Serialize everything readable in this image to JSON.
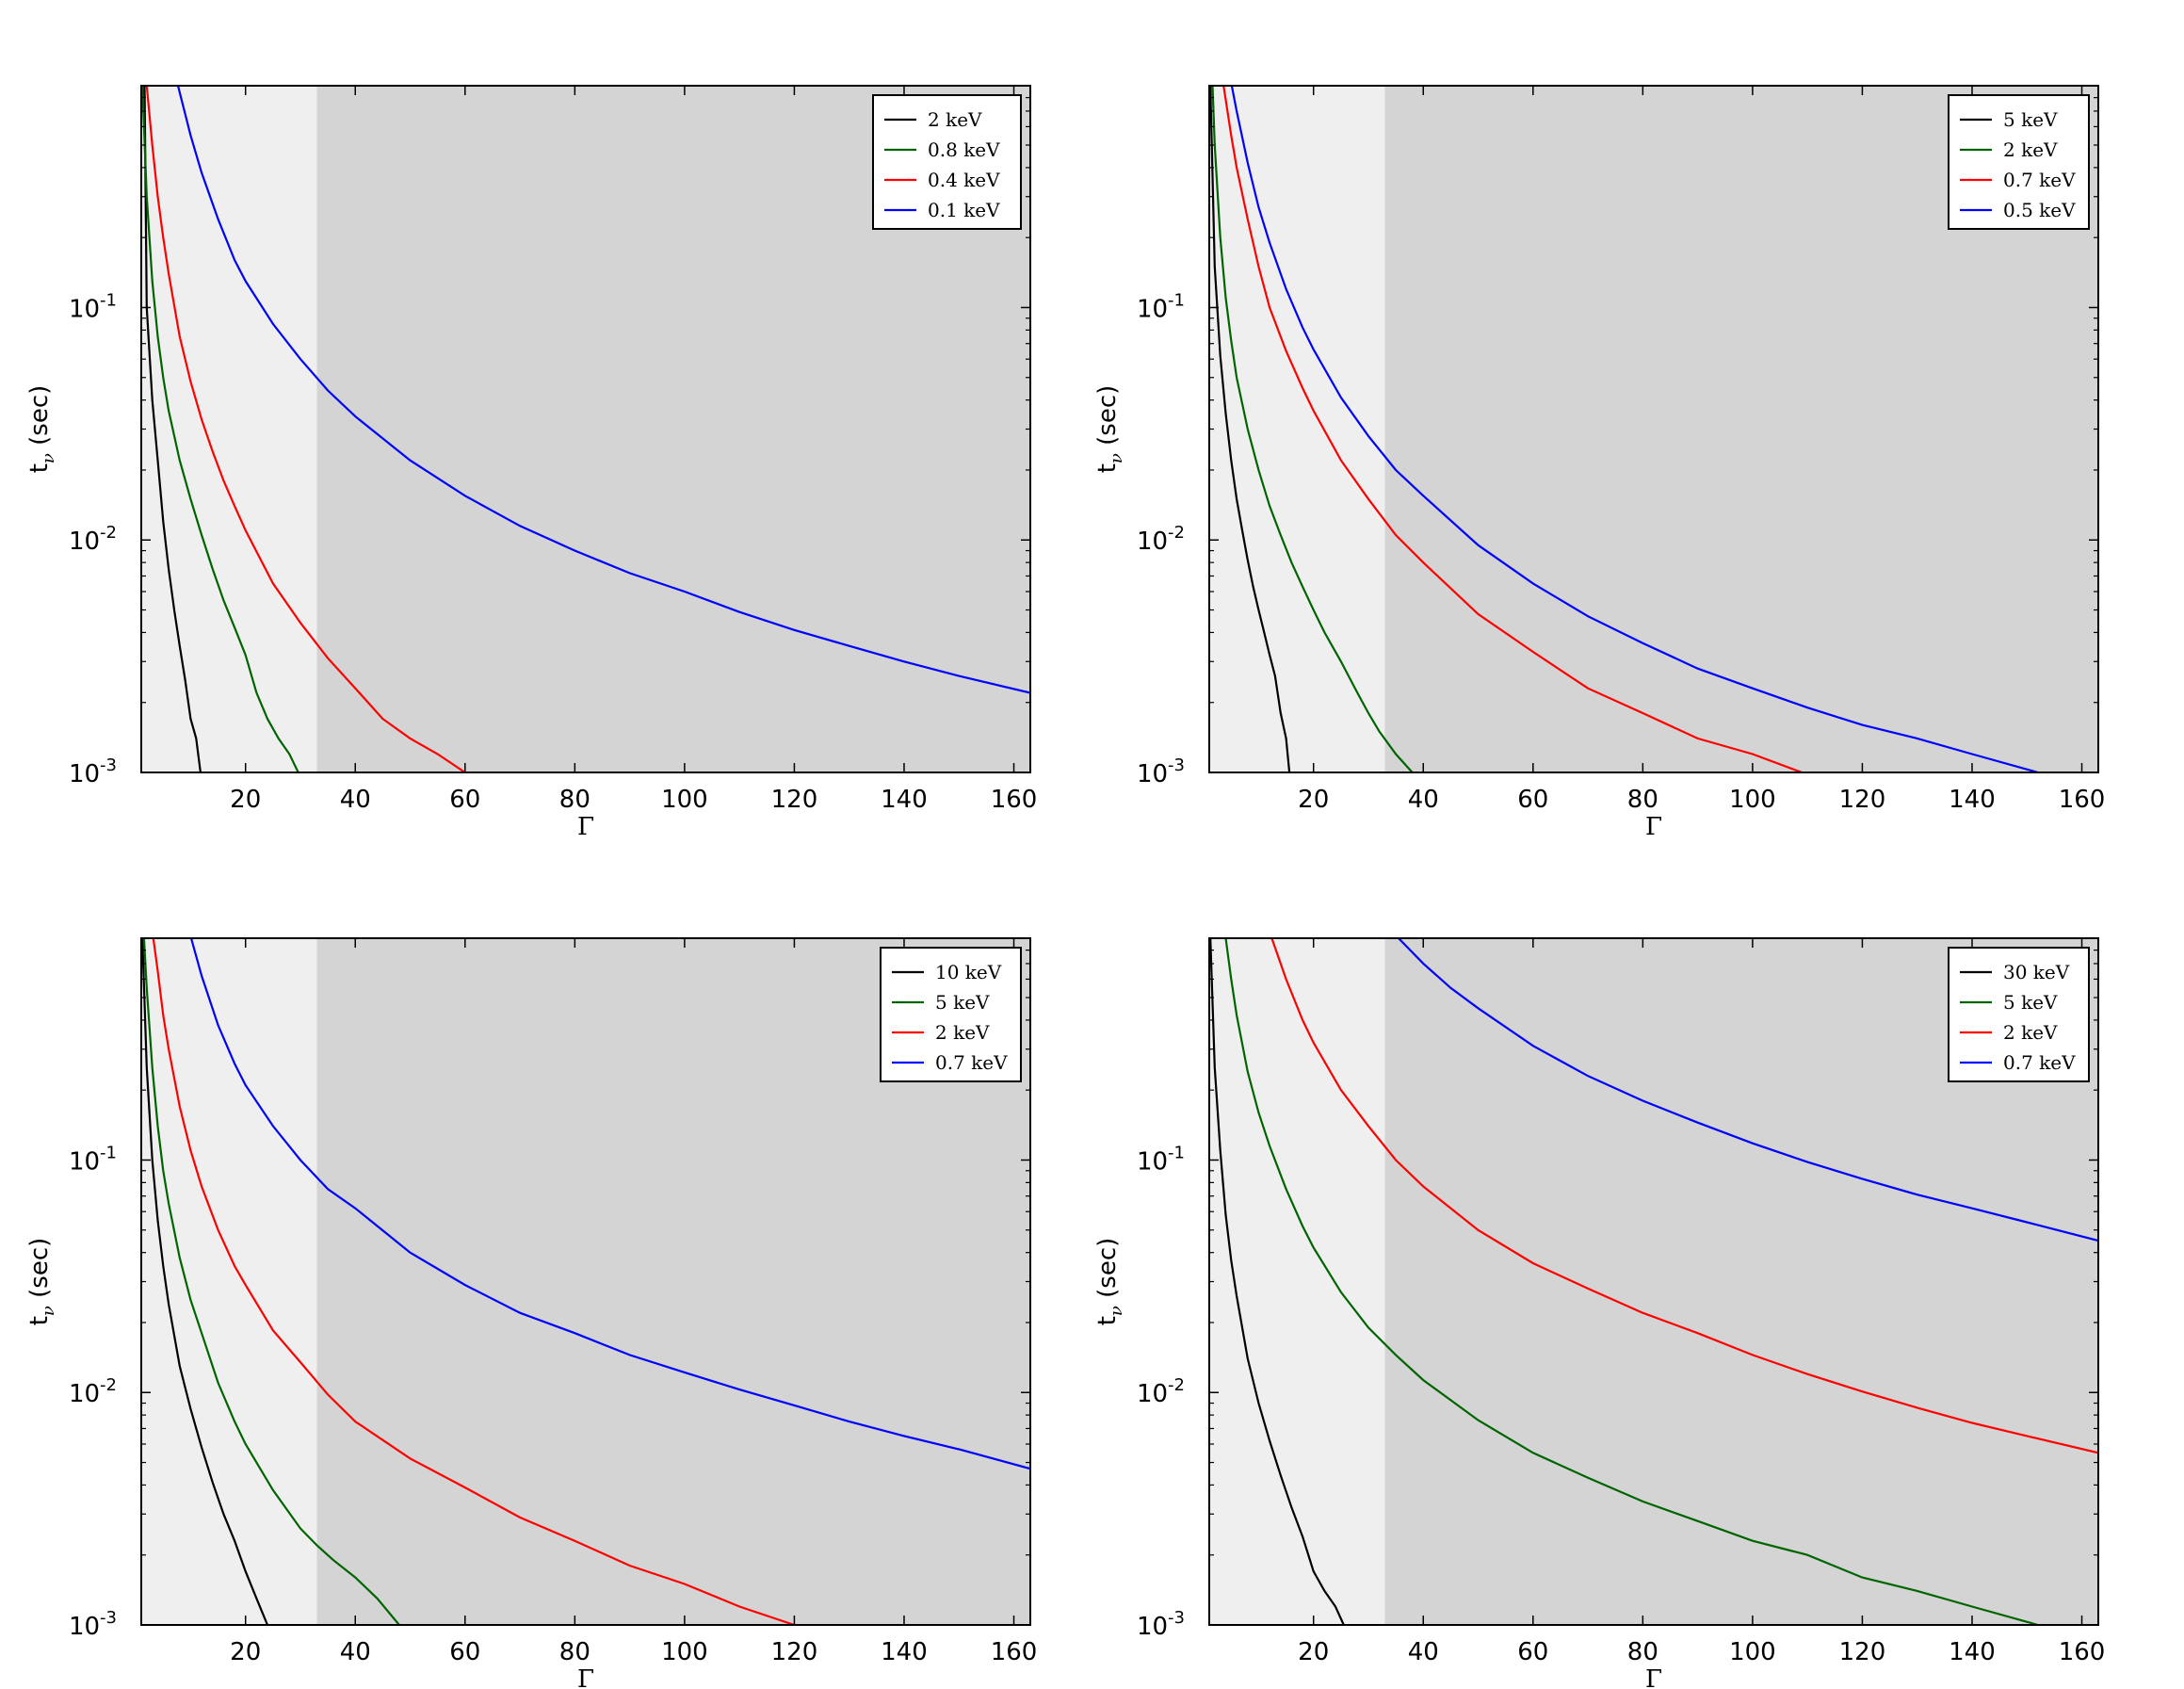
{
  "chart_data": [
    {
      "type": "line",
      "xlabel": "Γ",
      "ylabel_main": "t",
      "ylabel_sub": "ν",
      "ylabel_rest": " (sec)",
      "xlim": [
        1,
        163
      ],
      "ylim": [
        0.001,
        0.9
      ],
      "yscale": "log",
      "xticks": [
        20,
        40,
        60,
        80,
        100,
        120,
        140,
        160
      ],
      "yticks": [
        {
          "base": "10",
          "exp": "-3"
        },
        {
          "base": "10",
          "exp": "-2"
        },
        {
          "base": "10",
          "exp": "-1"
        }
      ],
      "shaded_regions": [
        {
          "x0": 1,
          "x1": 33,
          "color": "#efefef"
        },
        {
          "x0": 33,
          "x1": 163,
          "color": "#d4d4d4"
        }
      ],
      "legend_position": "top-right",
      "series": [
        {
          "name": "2 keV",
          "color": "#000000",
          "x": [
            1.6,
            2,
            3,
            4,
            5,
            6,
            7,
            8,
            9,
            10,
            11,
            11.8
          ],
          "y": [
            0.9,
            0.1,
            0.04,
            0.022,
            0.012,
            0.0075,
            0.005,
            0.0035,
            0.0025,
            0.0017,
            0.0014,
            0.001
          ]
        },
        {
          "name": "0.8 keV",
          "color": "#006400",
          "x": [
            1.2,
            2,
            3,
            4,
            5,
            6,
            8,
            10,
            12,
            14,
            16,
            18,
            20,
            22,
            24,
            26,
            28,
            29.6
          ],
          "y": [
            0.9,
            0.3,
            0.13,
            0.075,
            0.05,
            0.036,
            0.022,
            0.015,
            0.0105,
            0.0075,
            0.0055,
            0.0042,
            0.0032,
            0.0022,
            0.0017,
            0.0014,
            0.0012,
            0.001
          ]
        },
        {
          "name": "0.4 keV",
          "color": "#ff0000",
          "x": [
            2,
            3,
            4,
            5,
            6,
            8,
            10,
            12,
            14,
            16,
            18,
            20,
            25,
            30,
            35,
            40,
            45,
            50,
            55,
            60
          ],
          "y": [
            0.9,
            0.5,
            0.3,
            0.2,
            0.14,
            0.075,
            0.048,
            0.033,
            0.024,
            0.018,
            0.014,
            0.011,
            0.0065,
            0.0044,
            0.0031,
            0.0023,
            0.0017,
            0.0014,
            0.0012,
            0.001
          ]
        },
        {
          "name": "0.1 keV",
          "color": "#0000ff",
          "x": [
            7.7,
            10,
            12,
            15,
            18,
            20,
            25,
            30,
            35,
            40,
            50,
            60,
            70,
            80,
            90,
            100,
            110,
            120,
            130,
            140,
            150,
            163
          ],
          "y": [
            0.9,
            0.55,
            0.38,
            0.24,
            0.16,
            0.13,
            0.085,
            0.06,
            0.044,
            0.034,
            0.022,
            0.0155,
            0.0115,
            0.009,
            0.0072,
            0.006,
            0.0049,
            0.0041,
            0.0035,
            0.003,
            0.0026,
            0.0022
          ]
        }
      ]
    },
    {
      "type": "line",
      "xlabel": "Γ",
      "ylabel_main": "t",
      "ylabel_sub": "ν",
      "ylabel_rest": " (sec)",
      "xlim": [
        1,
        163
      ],
      "ylim": [
        0.001,
        0.9
      ],
      "yscale": "log",
      "xticks": [
        20,
        40,
        60,
        80,
        100,
        120,
        140,
        160
      ],
      "yticks": [
        {
          "base": "10",
          "exp": "-3"
        },
        {
          "base": "10",
          "exp": "-2"
        },
        {
          "base": "10",
          "exp": "-1"
        }
      ],
      "shaded_regions": [
        {
          "x0": 1,
          "x1": 33,
          "color": "#efefef"
        },
        {
          "x0": 33,
          "x1": 163,
          "color": "#d4d4d4"
        }
      ],
      "legend_position": "top-right",
      "series": [
        {
          "name": "5 keV",
          "color": "#000000",
          "x": [
            1.2,
            2,
            3,
            4,
            5,
            6,
            7,
            8,
            9,
            10,
            11,
            12,
            13,
            14,
            15,
            15.6
          ],
          "y": [
            0.9,
            0.15,
            0.062,
            0.035,
            0.022,
            0.015,
            0.011,
            0.0082,
            0.0063,
            0.005,
            0.004,
            0.0032,
            0.0026,
            0.0018,
            0.0014,
            0.001
          ]
        },
        {
          "name": "2 keV",
          "color": "#006400",
          "x": [
            1.6,
            2,
            3,
            4,
            5,
            6,
            8,
            10,
            12,
            14,
            16,
            18,
            20,
            22,
            25,
            28,
            30,
            32,
            35,
            38
          ],
          "y": [
            0.9,
            0.5,
            0.2,
            0.11,
            0.072,
            0.05,
            0.03,
            0.02,
            0.014,
            0.0105,
            0.008,
            0.0063,
            0.005,
            0.004,
            0.003,
            0.0022,
            0.0018,
            0.0015,
            0.0012,
            0.001
          ]
        },
        {
          "name": "0.7 keV",
          "color": "#ff0000",
          "x": [
            3.6,
            5,
            6,
            8,
            10,
            12,
            15,
            18,
            20,
            25,
            30,
            35,
            40,
            50,
            60,
            70,
            80,
            90,
            100,
            109
          ],
          "y": [
            0.9,
            0.55,
            0.4,
            0.24,
            0.15,
            0.1,
            0.065,
            0.045,
            0.036,
            0.022,
            0.015,
            0.0105,
            0.008,
            0.0048,
            0.0033,
            0.0023,
            0.0018,
            0.0014,
            0.0012,
            0.001
          ]
        },
        {
          "name": "0.5 keV",
          "color": "#0000ff",
          "x": [
            5.1,
            6,
            8,
            10,
            12,
            15,
            18,
            20,
            25,
            30,
            35,
            40,
            50,
            60,
            70,
            80,
            90,
            100,
            110,
            120,
            130,
            140,
            152
          ],
          "y": [
            0.9,
            0.7,
            0.42,
            0.27,
            0.19,
            0.12,
            0.082,
            0.066,
            0.041,
            0.028,
            0.02,
            0.0155,
            0.0095,
            0.0065,
            0.0047,
            0.0036,
            0.0028,
            0.0023,
            0.0019,
            0.0016,
            0.0014,
            0.0012,
            0.001
          ]
        }
      ]
    },
    {
      "type": "line",
      "xlabel": "Γ",
      "ylabel_main": "t",
      "ylabel_sub": "ν",
      "ylabel_rest": " (sec)",
      "xlim": [
        1,
        163
      ],
      "ylim": [
        0.001,
        0.9
      ],
      "yscale": "log",
      "xticks": [
        20,
        40,
        60,
        80,
        100,
        120,
        140,
        160
      ],
      "yticks": [
        {
          "base": "10",
          "exp": "-3"
        },
        {
          "base": "10",
          "exp": "-2"
        },
        {
          "base": "10",
          "exp": "-1"
        }
      ],
      "shaded_regions": [
        {
          "x0": 1,
          "x1": 33,
          "color": "#efefef"
        },
        {
          "x0": 33,
          "x1": 163,
          "color": "#d4d4d4"
        }
      ],
      "legend_position": "top-right",
      "series": [
        {
          "name": "10 keV",
          "color": "#000000",
          "x": [
            1.2,
            2,
            3,
            4,
            5,
            6,
            8,
            10,
            12,
            14,
            16,
            18,
            20,
            22,
            24
          ],
          "y": [
            0.9,
            0.25,
            0.1,
            0.055,
            0.035,
            0.024,
            0.013,
            0.0085,
            0.0058,
            0.0041,
            0.003,
            0.0023,
            0.0017,
            0.0013,
            0.001
          ]
        },
        {
          "name": "5 keV",
          "color": "#006400",
          "x": [
            1.5,
            2,
            3,
            4,
            5,
            6,
            8,
            10,
            12,
            15,
            18,
            20,
            25,
            30,
            33,
            36,
            40,
            44,
            48
          ],
          "y": [
            0.9,
            0.55,
            0.25,
            0.14,
            0.09,
            0.065,
            0.038,
            0.025,
            0.018,
            0.011,
            0.0075,
            0.006,
            0.0038,
            0.0026,
            0.0022,
            0.0019,
            0.0016,
            0.0013,
            0.001
          ]
        },
        {
          "name": "2 keV",
          "color": "#ff0000",
          "x": [
            3.2,
            4,
            5,
            6,
            8,
            10,
            12,
            15,
            18,
            20,
            25,
            30,
            35,
            40,
            50,
            60,
            70,
            80,
            90,
            100,
            110,
            120
          ],
          "y": [
            0.9,
            0.65,
            0.42,
            0.3,
            0.17,
            0.11,
            0.077,
            0.05,
            0.035,
            0.029,
            0.0185,
            0.0135,
            0.0098,
            0.0075,
            0.0052,
            0.0039,
            0.0029,
            0.0023,
            0.0018,
            0.0015,
            0.0012,
            0.001
          ]
        },
        {
          "name": "0.7 keV",
          "color": "#0000ff",
          "x": [
            10.1,
            12,
            15,
            18,
            20,
            25,
            30,
            35,
            40,
            50,
            60,
            70,
            80,
            90,
            100,
            110,
            120,
            130,
            140,
            150,
            163
          ],
          "y": [
            0.9,
            0.62,
            0.38,
            0.26,
            0.21,
            0.14,
            0.1,
            0.075,
            0.062,
            0.04,
            0.029,
            0.022,
            0.018,
            0.0145,
            0.0122,
            0.0103,
            0.0088,
            0.0075,
            0.0065,
            0.0057,
            0.0047
          ]
        }
      ]
    },
    {
      "type": "line",
      "xlabel": "Γ",
      "ylabel_main": "t",
      "ylabel_sub": "ν",
      "ylabel_rest": " (sec)",
      "xlim": [
        1,
        163
      ],
      "ylim": [
        0.001,
        0.9
      ],
      "yscale": "log",
      "xticks": [
        20,
        40,
        60,
        80,
        100,
        120,
        140,
        160
      ],
      "yticks": [
        {
          "base": "10",
          "exp": "-3"
        },
        {
          "base": "10",
          "exp": "-2"
        },
        {
          "base": "10",
          "exp": "-1"
        }
      ],
      "shaded_regions": [
        {
          "x0": 1,
          "x1": 33,
          "color": "#efefef"
        },
        {
          "x0": 33,
          "x1": 163,
          "color": "#d4d4d4"
        }
      ],
      "legend_position": "top-right",
      "series": [
        {
          "name": "30 keV",
          "color": "#000000",
          "x": [
            1.2,
            2,
            3,
            4,
            5,
            6,
            8,
            10,
            12,
            14,
            16,
            18,
            20,
            22,
            24,
            25.5
          ],
          "y": [
            0.9,
            0.25,
            0.11,
            0.058,
            0.037,
            0.026,
            0.014,
            0.009,
            0.0062,
            0.0044,
            0.0032,
            0.0024,
            0.0017,
            0.0014,
            0.0012,
            0.001
          ]
        },
        {
          "name": "5 keV",
          "color": "#006400",
          "x": [
            4,
            5,
            6,
            8,
            10,
            12,
            15,
            18,
            20,
            25,
            30,
            35,
            40,
            50,
            60,
            70,
            80,
            90,
            100,
            110,
            120,
            130,
            140,
            152
          ],
          "y": [
            0.9,
            0.6,
            0.42,
            0.24,
            0.16,
            0.115,
            0.075,
            0.052,
            0.042,
            0.027,
            0.019,
            0.0145,
            0.0113,
            0.0076,
            0.0055,
            0.0043,
            0.0034,
            0.0028,
            0.0023,
            0.002,
            0.0016,
            0.0014,
            0.0012,
            0.001
          ]
        },
        {
          "name": "2 keV",
          "color": "#ff0000",
          "x": [
            12.4,
            15,
            18,
            20,
            25,
            30,
            35,
            40,
            50,
            60,
            70,
            80,
            90,
            100,
            110,
            120,
            130,
            140,
            150,
            163
          ],
          "y": [
            0.9,
            0.6,
            0.4,
            0.32,
            0.2,
            0.14,
            0.1,
            0.077,
            0.05,
            0.036,
            0.028,
            0.022,
            0.018,
            0.0145,
            0.012,
            0.0101,
            0.0086,
            0.0074,
            0.0065,
            0.0055
          ]
        },
        {
          "name": "0.7 keV",
          "color": "#0000ff",
          "x": [
            35.5,
            40,
            45,
            50,
            60,
            70,
            80,
            90,
            100,
            110,
            120,
            130,
            140,
            150,
            163
          ],
          "y": [
            0.9,
            0.7,
            0.55,
            0.45,
            0.31,
            0.23,
            0.18,
            0.145,
            0.118,
            0.098,
            0.083,
            0.071,
            0.062,
            0.054,
            0.045
          ]
        }
      ]
    }
  ]
}
